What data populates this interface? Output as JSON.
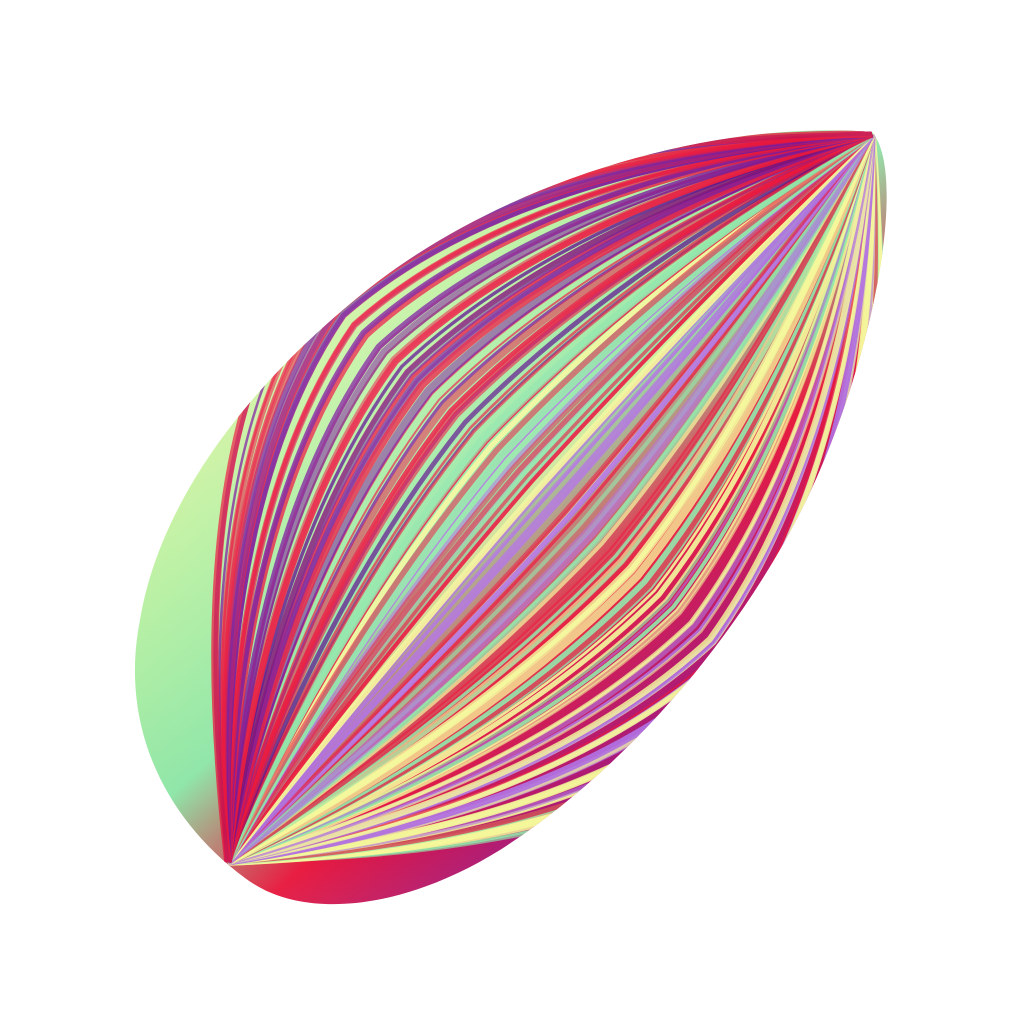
{
  "scene": {
    "background_color": "#ffffff",
    "subject": "almond-shaped-striped-seed",
    "palette": {
      "pale_yellow": "#f4f79a",
      "mint_green": "#8fe6a8",
      "lavender": "#b070e0",
      "purple": "#7a1a9a",
      "crimson": "#e8173c",
      "deep_violet": "#5a0f8a"
    }
  }
}
